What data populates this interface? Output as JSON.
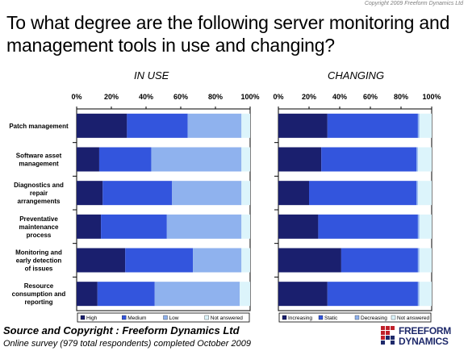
{
  "copyright": "Copyright 2009 Freeform Dynamics Ltd",
  "title": "To what degree are the following server monitoring and management tools in use and changing?",
  "footer": {
    "source": "Source and Copyright : Freeform Dynamics Ltd",
    "survey": "Online survey (979 total respondents) completed October 2009"
  },
  "logo": {
    "line1": "FREEFORM",
    "line2": "DYNAMICS"
  },
  "colors": {
    "dark": "#1a1f6e",
    "mid": "#3355dd",
    "light": "#8fb2ee",
    "pale": "#dcf4fb",
    "frame": "#000000"
  },
  "chart_data": [
    {
      "type": "bar",
      "orientation": "horizontal",
      "stacked": true,
      "title": "IN USE",
      "categories": [
        "Patch management",
        "Software asset management",
        "Diagnostics and repair arrangements",
        "Preventative maintenance process",
        "Monitoring and early detection of issues",
        "Resource consumption and reporting"
      ],
      "series": [
        {
          "name": "High",
          "values": [
            29,
            13,
            15,
            14,
            28,
            12
          ]
        },
        {
          "name": "Medium",
          "values": [
            35,
            30,
            40,
            38,
            39,
            33
          ]
        },
        {
          "name": "Low",
          "values": [
            31,
            52,
            40,
            43,
            28,
            49
          ]
        },
        {
          "name": "Not answered",
          "values": [
            5,
            5,
            5,
            5,
            5,
            6
          ]
        }
      ],
      "xlim": [
        0,
        100
      ],
      "ticks": [
        "0%",
        "20%",
        "40%",
        "60%",
        "80%",
        "100%"
      ],
      "legend_position": "bottom"
    },
    {
      "type": "bar",
      "orientation": "horizontal",
      "stacked": true,
      "title": "CHANGING",
      "categories": [
        "Patch management",
        "Software asset management",
        "Diagnostics and repair arrangements",
        "Preventative maintenance process",
        "Monitoring and early detection of issues",
        "Resource consumption and reporting"
      ],
      "series": [
        {
          "name": "Increasing",
          "values": [
            32,
            28,
            20,
            26,
            41,
            32
          ]
        },
        {
          "name": "Static",
          "values": [
            59,
            62,
            70,
            65,
            50,
            59
          ]
        },
        {
          "name": "Decreasing",
          "values": [
            1,
            1,
            1,
            1,
            1,
            1
          ]
        },
        {
          "name": "Not answered",
          "values": [
            8,
            9,
            9,
            8,
            8,
            8
          ]
        }
      ],
      "xlim": [
        0,
        100
      ],
      "ticks": [
        "0%",
        "20%",
        "40%",
        "60%",
        "80%",
        "100%"
      ],
      "legend_position": "bottom"
    }
  ]
}
